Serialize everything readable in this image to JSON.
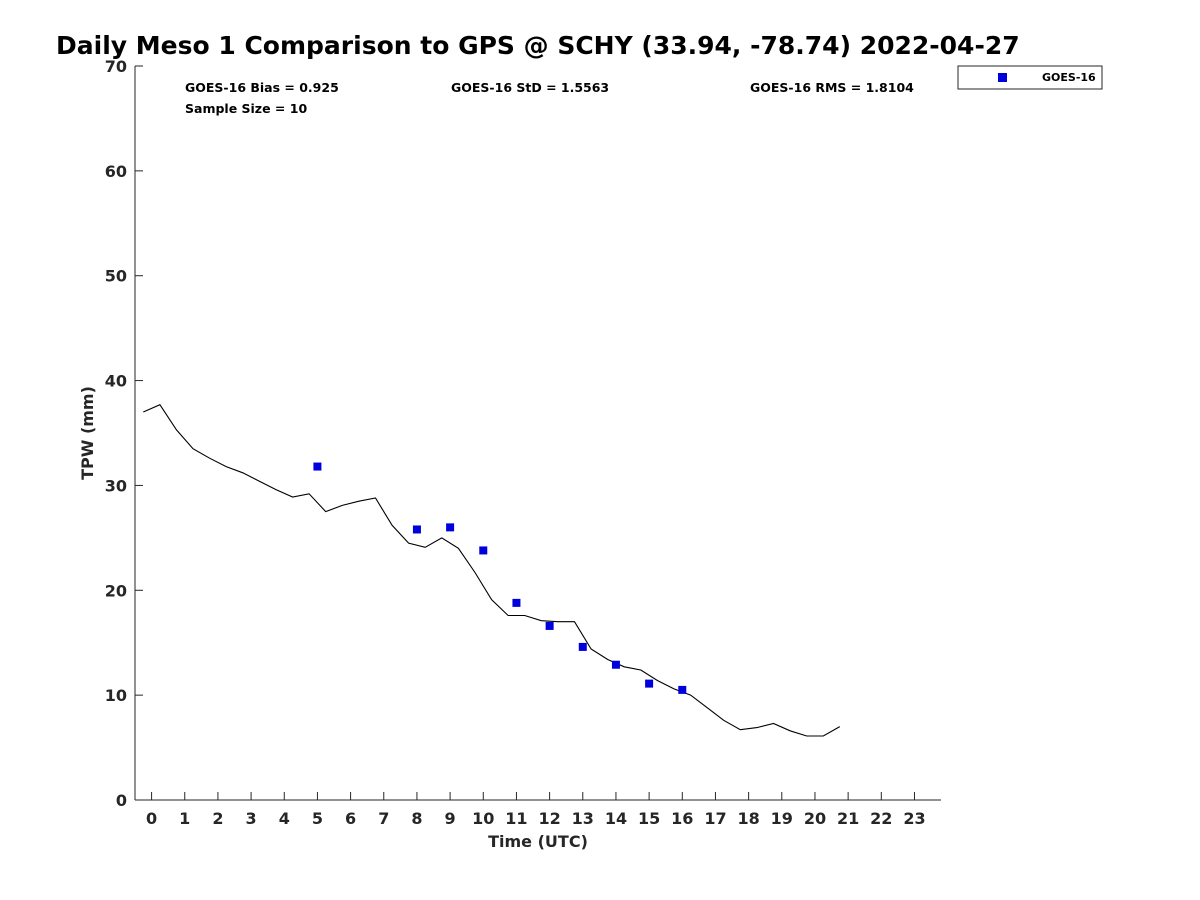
{
  "chart_data": {
    "type": "scatter",
    "title": "Daily Meso 1 Comparison to GPS @ SCHY (33.94, -78.74) 2022-04-27",
    "xlabel": "Time (UTC)",
    "ylabel": "TPW (mm)",
    "xlim": [
      -0.5,
      23.8
    ],
    "ylim": [
      0,
      70
    ],
    "x_ticks": [
      0,
      1,
      2,
      3,
      4,
      5,
      6,
      7,
      8,
      9,
      10,
      11,
      12,
      13,
      14,
      15,
      16,
      17,
      18,
      19,
      20,
      21,
      22,
      23
    ],
    "y_ticks": [
      0,
      10,
      20,
      30,
      40,
      50,
      60,
      70
    ],
    "grid": false,
    "legend_position": "top-right-outside",
    "stats": {
      "bias": "GOES-16 Bias = 0.925",
      "std": "GOES-16 StD = 1.5563",
      "rms": "GOES-16 RMS = 1.8104",
      "sample_size": "Sample Size = 10"
    },
    "series": [
      {
        "name": "GOES-16",
        "kind": "scatter",
        "marker": "square",
        "color": "#0000dd",
        "x": [
          5,
          8,
          9,
          10,
          11,
          12,
          13,
          14,
          15,
          16
        ],
        "y": [
          31.8,
          25.8,
          26.0,
          23.8,
          18.8,
          16.6,
          14.6,
          12.9,
          11.1,
          10.5
        ]
      },
      {
        "kind": "line",
        "color": "#000000",
        "x": [
          -0.25,
          0.25,
          0.75,
          1.25,
          1.75,
          2.25,
          2.75,
          3.25,
          3.75,
          4.25,
          4.75,
          5.25,
          5.75,
          6.25,
          6.75,
          7.25,
          7.75,
          8.25,
          8.75,
          9.25,
          9.75,
          10.25,
          10.75,
          11.25,
          11.75,
          12.25,
          12.75,
          13.25,
          13.75,
          14.25,
          14.75,
          15.25,
          15.75,
          16.25,
          16.75,
          17.25,
          17.75,
          18.25,
          18.75,
          19.25,
          19.75,
          20.25,
          20.75
        ],
        "y": [
          37.0,
          37.7,
          35.3,
          33.5,
          32.6,
          31.8,
          31.2,
          30.4,
          29.6,
          28.9,
          29.2,
          27.5,
          28.1,
          28.5,
          28.8,
          26.2,
          24.5,
          24.1,
          25.0,
          24.0,
          21.7,
          19.1,
          17.6,
          17.6,
          17.1,
          17.0,
          17.0,
          14.4,
          13.4,
          12.7,
          12.4,
          11.4,
          10.6,
          10.0,
          8.8,
          7.6,
          6.7,
          6.9,
          7.3,
          6.6,
          6.1,
          6.1,
          7.0
        ]
      }
    ]
  }
}
